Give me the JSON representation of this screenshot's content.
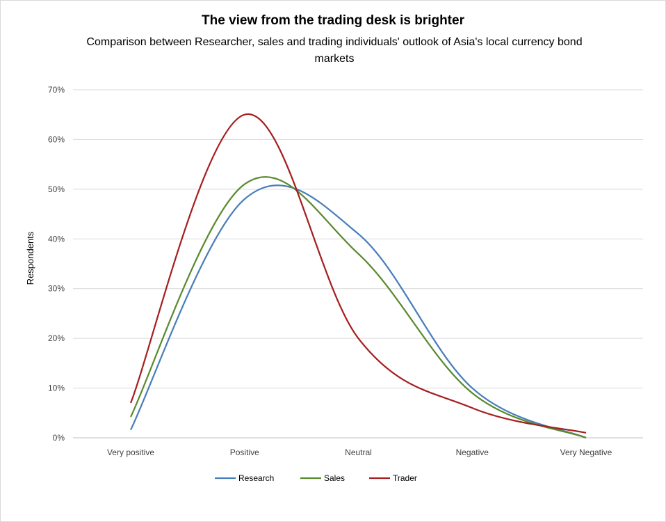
{
  "chart_data": {
    "type": "line",
    "title": "The view from the trading desk is brighter",
    "subtitle": "Comparison between Researcher, sales and trading individuals'  outlook of Asia's local currency bond markets",
    "xlabel": "",
    "ylabel": "Respondents",
    "categories": [
      "Very positive",
      "Positive",
      "Neutral",
      "Negative",
      "Very Negative"
    ],
    "ylim": [
      0,
      70
    ],
    "yticks": [
      "0%",
      "10%",
      "20%",
      "30%",
      "40%",
      "50%",
      "60%",
      "70%"
    ],
    "grid": true,
    "legend_position": "bottom",
    "series": [
      {
        "name": "Research",
        "color": "#4a7ebb",
        "values": [
          1.6,
          48,
          41,
          10,
          0
        ]
      },
      {
        "name": "Sales",
        "color": "#5a8a2e",
        "values": [
          4.2,
          51,
          37,
          9,
          0
        ]
      },
      {
        "name": "Trader",
        "color": "#a52020",
        "values": [
          7,
          65,
          20,
          6,
          1
        ]
      }
    ]
  }
}
